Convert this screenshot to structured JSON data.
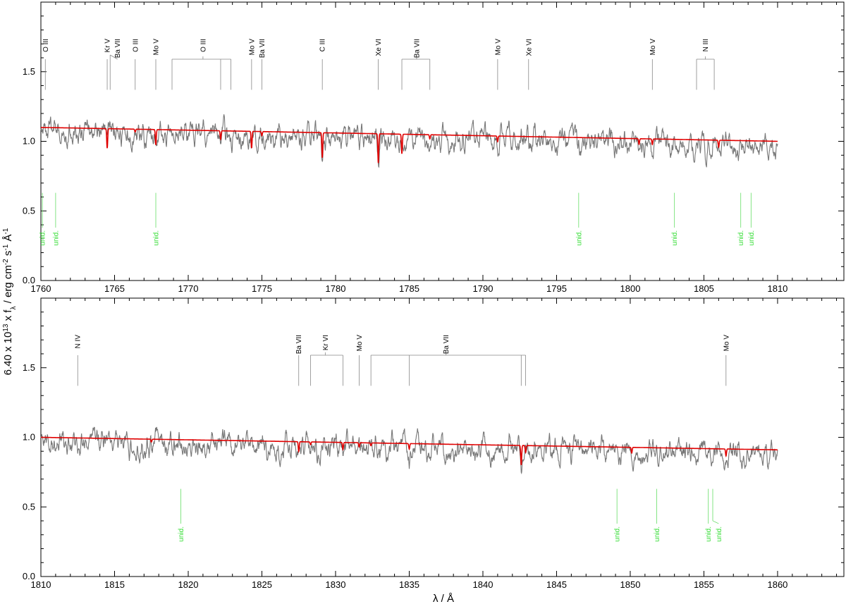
{
  "chart_data": {
    "type": "line",
    "ylabel": "6.40 x 10^13 x f_λ / erg cm^-2 s^-1 Å^-1",
    "xlabel": "λ / Å",
    "colors": {
      "observation": "#777777",
      "model": "#e00000",
      "unidentified": "#33dd33",
      "identified": "#888888"
    },
    "panels": [
      {
        "xlim": [
          1760,
          1814.5
        ],
        "ylim": [
          0.0,
          2.0
        ],
        "xticks": [
          "1760",
          "1765",
          "1770",
          "1775",
          "1780",
          "1785",
          "1790",
          "1795",
          "1800",
          "1805",
          "1810"
        ],
        "yticks": [
          "0.0",
          "0.5",
          "1.0",
          "1.5"
        ],
        "data_range": [
          1760,
          1810
        ],
        "model_continuum": [
          1.1,
          1.0
        ],
        "model_lines": [
          {
            "x": 1764.5,
            "depth": 0.14
          },
          {
            "x": 1767.8,
            "depth": 0.11
          },
          {
            "x": 1772.2,
            "depth": 0.06
          },
          {
            "x": 1774.3,
            "depth": 0.12
          },
          {
            "x": 1779.1,
            "depth": 0.18
          },
          {
            "x": 1782.9,
            "depth": 0.21
          },
          {
            "x": 1784.5,
            "depth": 0.14
          },
          {
            "x": 1791.0,
            "depth": 0.04
          },
          {
            "x": 1800.6,
            "depth": 0.04
          },
          {
            "x": 1801.5,
            "depth": 0.04
          },
          {
            "x": 1806.0,
            "depth": 0.05
          },
          {
            "x": 1775.0,
            "depth": 0.03
          },
          {
            "x": 1786.4,
            "depth": 0.03
          },
          {
            "x": 1766.4,
            "depth": 0.02
          }
        ],
        "ids": [
          {
            "label": "O III",
            "xs": [
              1760.3
            ],
            "textX": 1760.3
          },
          {
            "label": "Kr V",
            "xs": [
              1764.5
            ],
            "textX": 1764.5
          },
          {
            "label": "Ba VII",
            "xs": [
              1764.7
            ],
            "textX": 1765.2
          },
          {
            "label": "O III",
            "xs": [
              1766.4
            ],
            "textX": 1766.4
          },
          {
            "label": "Mo V",
            "xs": [
              1767.8
            ],
            "textX": 1767.8
          },
          {
            "label": "O III",
            "xs": [
              1768.9,
              1772.2,
              1772.9
            ],
            "textX": 1771.0
          },
          {
            "label": "Mo V",
            "xs": [
              1774.3
            ],
            "textX": 1774.3
          },
          {
            "label": "Ba VII",
            "xs": [
              1775.0
            ],
            "textX": 1775.0
          },
          {
            "label": "C III",
            "xs": [
              1779.1
            ],
            "textX": 1779.1
          },
          {
            "label": "Xe VI",
            "xs": [
              1782.9
            ],
            "textX": 1782.9
          },
          {
            "label": "Ba VII",
            "xs": [
              1784.5,
              1786.4
            ],
            "textX": 1785.5
          },
          {
            "label": "Mo V",
            "xs": [
              1791.0
            ],
            "textX": 1791.0
          },
          {
            "label": "Xe VI",
            "xs": [
              1793.1
            ],
            "textX": 1793.1
          },
          {
            "label": "Mo V",
            "xs": [
              1801.5
            ],
            "textX": 1801.5
          },
          {
            "label": "N III",
            "xs": [
              1804.5,
              1805.7
            ],
            "textX": 1805.1
          }
        ],
        "unid": [
          {
            "label": "unid.",
            "x": 1760.1,
            "textX": 1760.1
          },
          {
            "label": "unid.",
            "x": 1761.0,
            "textX": 1761.0
          },
          {
            "label": "unid.",
            "x": 1767.8,
            "textX": 1767.8
          },
          {
            "label": "unid.",
            "x": 1796.5,
            "textX": 1796.5
          },
          {
            "label": "unid.",
            "x": 1803.0,
            "textX": 1803.0
          },
          {
            "label": "unid.",
            "x": 1807.5,
            "textX": 1807.5
          },
          {
            "label": "unid.",
            "x": 1808.2,
            "textX": 1808.2
          }
        ]
      },
      {
        "xlim": [
          1810,
          1864.5
        ],
        "ylim": [
          0.0,
          2.0
        ],
        "xticks": [
          "1810",
          "1815",
          "1820",
          "1825",
          "1830",
          "1835",
          "1840",
          "1845",
          "1850",
          "1855",
          "1860"
        ],
        "yticks": [
          "0.0",
          "0.5",
          "1.0",
          "1.5"
        ],
        "data_range": [
          1810,
          1860
        ],
        "model_continuum": [
          1.0,
          0.91
        ],
        "model_lines": [
          {
            "x": 1827.5,
            "depth": 0.07
          },
          {
            "x": 1830.5,
            "depth": 0.05
          },
          {
            "x": 1831.6,
            "depth": 0.03
          },
          {
            "x": 1835.0,
            "depth": 0.04
          },
          {
            "x": 1842.6,
            "depth": 0.14
          },
          {
            "x": 1842.9,
            "depth": 0.05
          },
          {
            "x": 1850.1,
            "depth": 0.04
          },
          {
            "x": 1856.5,
            "depth": 0.05
          },
          {
            "x": 1828.3,
            "depth": 0.02
          },
          {
            "x": 1832.4,
            "depth": 0.02
          },
          {
            "x": 1817.5,
            "depth": 0.02
          }
        ],
        "ids": [
          {
            "label": "N IV",
            "xs": [
              1812.5
            ],
            "textX": 1812.5
          },
          {
            "label": "Ba VII",
            "xs": [
              1827.5
            ],
            "textX": 1827.5
          },
          {
            "label": "Kr VI",
            "xs": [
              1828.3,
              1830.5
            ],
            "textX": 1829.3
          },
          {
            "label": "Mo V",
            "xs": [
              1831.6
            ],
            "textX": 1831.6
          },
          {
            "label": "Ba VII",
            "xs": [
              1832.4,
              1835.0,
              1842.6,
              1842.9
            ],
            "textX": 1837.5
          },
          {
            "label": "Mo V",
            "xs": [
              1856.5
            ],
            "textX": 1856.5
          }
        ],
        "unid": [
          {
            "label": "unid.",
            "x": 1819.5,
            "textX": 1819.5
          },
          {
            "label": "unid.",
            "x": 1849.1,
            "textX": 1849.1
          },
          {
            "label": "unid.",
            "x": 1851.8,
            "textX": 1851.8
          },
          {
            "label": "unid.",
            "x": 1855.3,
            "textX": 1855.3
          },
          {
            "label": "unid.",
            "x": 1855.6,
            "textX": 1856.0
          }
        ]
      }
    ]
  }
}
